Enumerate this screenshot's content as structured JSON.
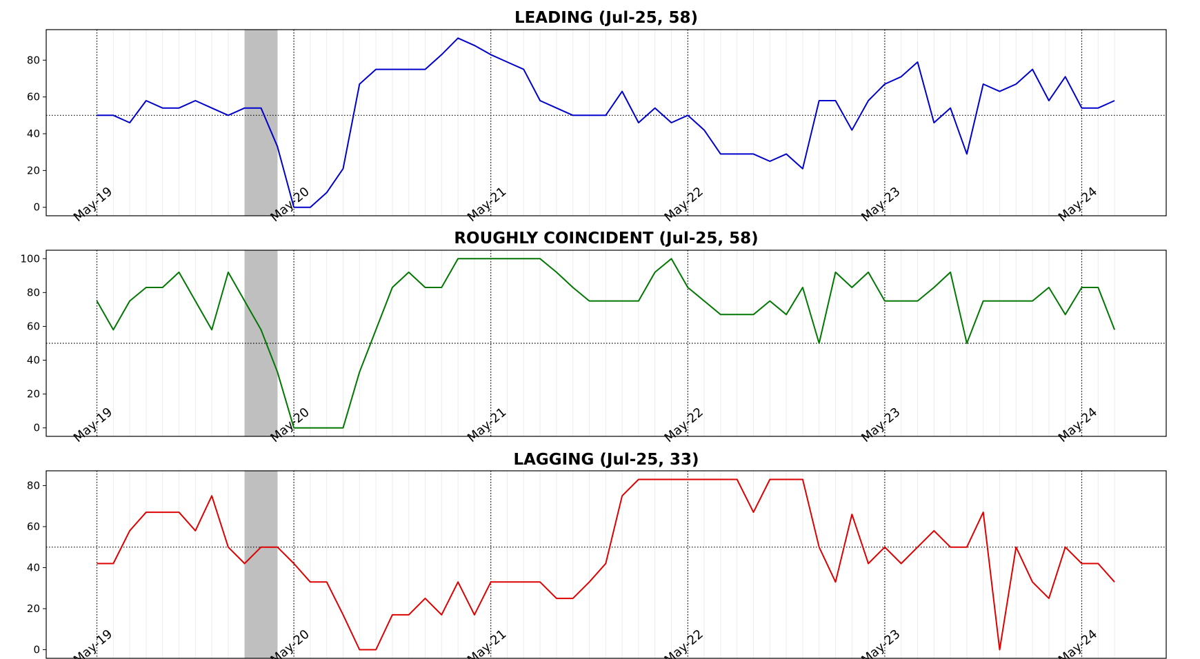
{
  "chart_data": [
    {
      "type": "line",
      "title": "LEADING (Jul-25, 58)",
      "color": "#0000cc",
      "x_labels": [
        "May-19",
        "May-20",
        "May-21",
        "May-22",
        "May-23",
        "May-24"
      ],
      "yticks": [
        0,
        20,
        40,
        60,
        80
      ],
      "ylim": [
        -4.6,
        96.6
      ],
      "threshold": 50,
      "recession_band": [
        9,
        11
      ],
      "values": [
        50,
        50,
        46,
        58,
        54,
        54,
        58,
        54,
        50,
        54,
        54,
        33,
        0,
        0,
        8,
        21,
        67,
        75,
        75,
        75,
        75,
        83,
        92,
        88,
        83,
        79,
        75,
        58,
        54,
        50,
        50,
        50,
        63,
        46,
        54,
        46,
        50,
        42,
        29,
        29,
        29,
        25,
        29,
        21,
        58,
        58,
        42,
        58,
        67,
        71,
        79,
        46,
        54,
        29,
        67,
        63,
        67,
        75,
        58,
        71,
        54,
        54,
        58
      ]
    },
    {
      "type": "line",
      "title": "ROUGHLY COINCIDENT (Jul-25, 58)",
      "color": "#007700",
      "x_labels": [
        "May-19",
        "May-20",
        "May-21",
        "May-22",
        "May-23",
        "May-24"
      ],
      "yticks": [
        0,
        20,
        40,
        60,
        80,
        100
      ],
      "ylim": [
        -5,
        105
      ],
      "threshold": 50,
      "recession_band": [
        9,
        11
      ],
      "values": [
        75,
        58,
        75,
        83,
        83,
        92,
        75,
        58,
        92,
        75,
        58,
        33,
        0,
        0,
        0,
        0,
        33,
        58,
        83,
        92,
        83,
        83,
        100,
        100,
        100,
        100,
        100,
        100,
        92,
        83,
        75,
        75,
        75,
        75,
        92,
        100,
        83,
        75,
        67,
        67,
        67,
        75,
        67,
        83,
        50,
        92,
        83,
        92,
        75,
        75,
        75,
        83,
        92,
        50,
        75,
        75,
        75,
        75,
        83,
        67,
        83,
        83,
        58
      ]
    },
    {
      "type": "line",
      "title": "LAGGING (Jul-25, 33)",
      "color": "#dd0000",
      "x_labels": [
        "May-19",
        "May-20",
        "May-21",
        "May-22",
        "May-23",
        "May-24"
      ],
      "yticks": [
        0,
        20,
        40,
        60,
        80
      ],
      "ylim": [
        -4.2,
        87.2
      ],
      "threshold": 50,
      "recession_band": [
        9,
        11
      ],
      "values": [
        42,
        42,
        58,
        67,
        67,
        67,
        58,
        75,
        50,
        42,
        50,
        50,
        42,
        33,
        33,
        17,
        0,
        0,
        17,
        17,
        25,
        17,
        33,
        17,
        33,
        33,
        33,
        33,
        25,
        25,
        33,
        42,
        75,
        83,
        83,
        83,
        83,
        83,
        83,
        83,
        67,
        83,
        83,
        83,
        50,
        33,
        66,
        42,
        50,
        42,
        50,
        58,
        50,
        50,
        67,
        0,
        50,
        33,
        25,
        50,
        42,
        42,
        33
      ]
    }
  ]
}
